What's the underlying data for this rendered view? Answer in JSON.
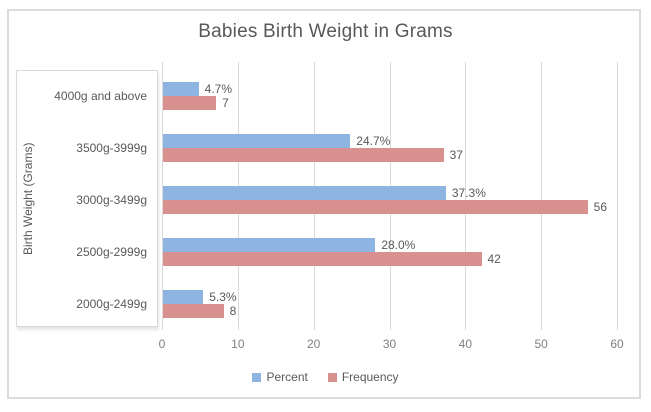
{
  "chart_data": {
    "type": "bar",
    "orientation": "horizontal",
    "title": "Babies Birth Weight in Grams",
    "ylabel": "Birth Weight (Grams)",
    "xlabel": "",
    "categories_top_to_bottom": [
      "4000g and above",
      "3500g-3999g",
      "3000g-3499g",
      "2500g-2999g",
      "2000g-2499g"
    ],
    "series": [
      {
        "name": "Percent",
        "color": "#8EB4E2",
        "values": [
          4.7,
          24.7,
          37.3,
          28.0,
          5.3
        ],
        "labels": [
          "4.7%",
          "24.7%",
          "37.3%",
          "28.0%",
          "5.3%"
        ]
      },
      {
        "name": "Frequency",
        "color": "#D9918F",
        "values": [
          7,
          37,
          56,
          42,
          8
        ],
        "labels": [
          "7",
          "37",
          "56",
          "42",
          "8"
        ]
      }
    ],
    "x_axis": {
      "min": 0,
      "max": 60,
      "ticks": [
        0,
        10,
        20,
        30,
        40,
        50,
        60
      ]
    },
    "legend_position": "bottom",
    "grid": "vertical-gridlines",
    "colors": {
      "title_text": "#595959",
      "axis_text": "#808080",
      "label_text": "#595959",
      "gridline": "#D9D9D9",
      "frame_border": "#DCDCDC",
      "axis_box_border": "#D9D9D9"
    }
  }
}
